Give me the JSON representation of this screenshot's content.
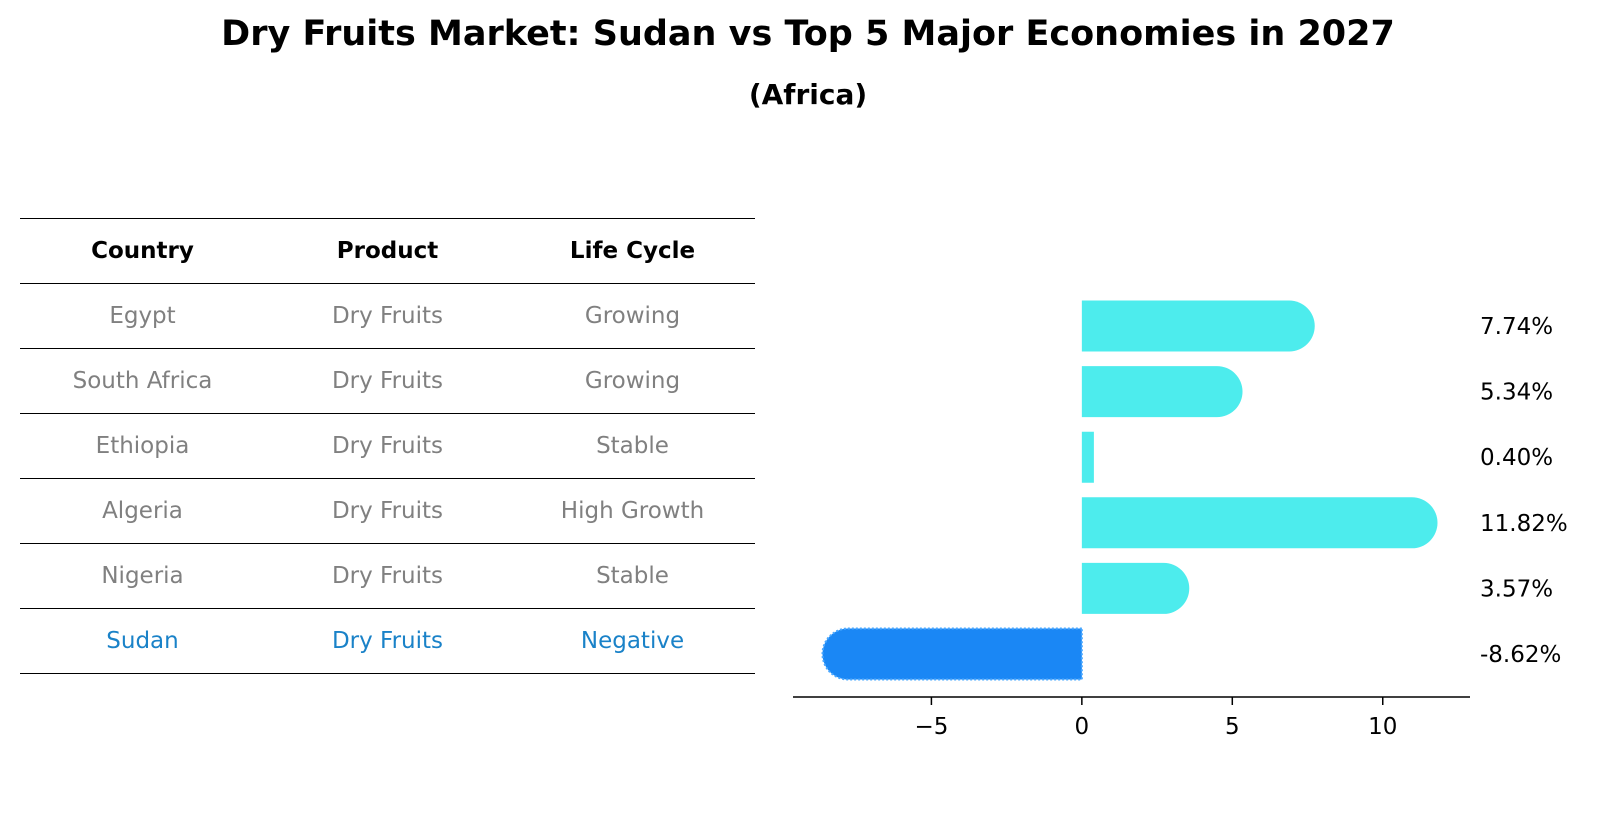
{
  "title": "Dry Fruits Market: Sudan vs Top 5 Major Economies in 2027",
  "subtitle": "(Africa)",
  "table": {
    "headers": [
      "Country",
      "Product",
      "Life Cycle"
    ],
    "rows": [
      {
        "country": "Egypt",
        "product": "Dry Fruits",
        "life_cycle": "Growing"
      },
      {
        "country": "South Africa",
        "product": "Dry Fruits",
        "life_cycle": "Growing"
      },
      {
        "country": "Ethiopia",
        "product": "Dry Fruits",
        "life_cycle": "Stable"
      },
      {
        "country": "Algeria",
        "product": "Dry Fruits",
        "life_cycle": "High Growth"
      },
      {
        "country": "Nigeria",
        "product": "Dry Fruits",
        "life_cycle": "Stable"
      },
      {
        "country": "Sudan",
        "product": "Dry Fruits",
        "life_cycle": "Negative"
      }
    ]
  },
  "colors": {
    "bar": "#4deced",
    "highlight": "#1a87f5",
    "highlight_text": "#1a82c8",
    "muted_text": "#808080"
  },
  "chart_data": {
    "type": "bar",
    "orientation": "horizontal",
    "categories": [
      "Egypt",
      "South Africa",
      "Ethiopia",
      "Algeria",
      "Nigeria",
      "Sudan"
    ],
    "values": [
      7.74,
      5.34,
      0.4,
      11.82,
      3.57,
      -8.62
    ],
    "value_labels": [
      "7.74%",
      "5.34%",
      "0.40%",
      "11.82%",
      "3.57%",
      "-8.62%"
    ],
    "highlight_category": "Sudan",
    "xlim": [
      -9.6,
      12.9
    ],
    "xticks": [
      -5,
      0,
      5,
      10
    ],
    "xtick_labels": [
      "−5",
      "0",
      "5",
      "10"
    ],
    "grid": false
  }
}
